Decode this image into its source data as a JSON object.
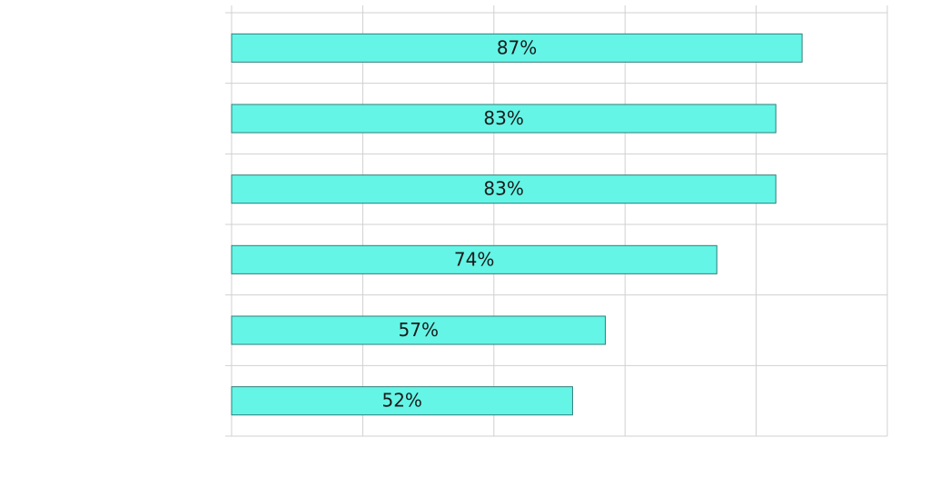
{
  "chart_data": {
    "type": "hbar",
    "categories": [
      null,
      null,
      null,
      null,
      null,
      null
    ],
    "values": [
      87,
      83,
      83,
      74,
      57,
      52
    ],
    "value_labels": [
      "87%",
      "83%",
      "83%",
      "74%",
      "57%",
      "52%"
    ],
    "color": "#64f5e6",
    "edge_color": "#2e7f7a",
    "xlim": [
      0,
      100
    ],
    "xticks": [
      0,
      20,
      40,
      60,
      80,
      100
    ],
    "grid": true
  }
}
